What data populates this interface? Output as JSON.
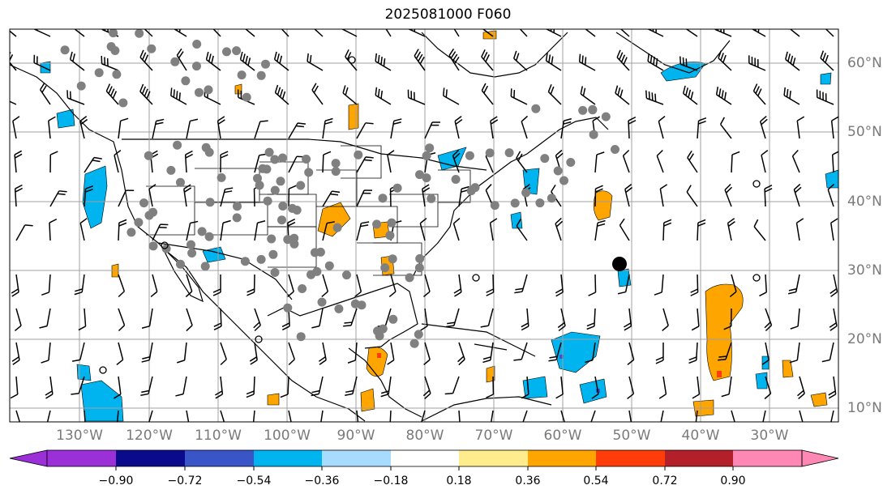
{
  "title": "2025081000 F060",
  "map": {
    "longitude_labels": [
      "130°W",
      "120°W",
      "110°W",
      "100°W",
      "90°W",
      "80°W",
      "70°W",
      "60°W",
      "50°W",
      "40°W",
      "30°W"
    ],
    "latitude_labels": [
      "60°N",
      "50°N",
      "40°N",
      "30°N",
      "20°N",
      "10°N"
    ],
    "gridline_color": "#a0a0a0",
    "coastline_color": "#000000",
    "wind_barb_color": "#000000",
    "station_marker_color": "#808080",
    "highlight_marker_color": "#000000"
  },
  "colorbar": {
    "tick_labels": [
      "−0.90",
      "−0.72",
      "−0.54",
      "−0.36",
      "−0.18",
      "0.18",
      "0.36",
      "0.54",
      "0.72",
      "0.90"
    ],
    "colors": [
      "#9b30d9",
      "#0a0a8c",
      "#3a55c8",
      "#00b4f0",
      "#a8dcff",
      "#ffffff",
      "#ffec8c",
      "#ffa500",
      "#ff3c0a",
      "#b4202a",
      "#ff87b4"
    ],
    "extend": "both"
  }
}
